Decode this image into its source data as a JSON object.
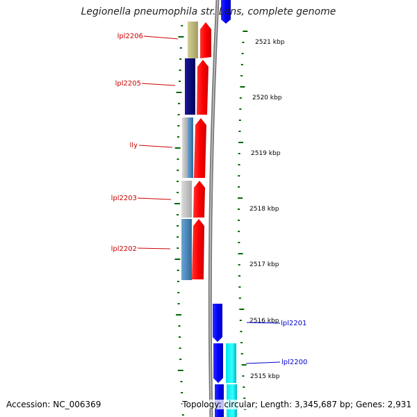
{
  "title": "Legionella pneumophila str. Lens, complete genome",
  "footer": {
    "accession": "Accession: NC_006369",
    "topology": "Topology: circular; Length: 3,345,687 bp; Genes: 2,931"
  },
  "ruler": {
    "labels": [
      "2521 kbp",
      "2520 kbp",
      "2519 kbp",
      "2518 kbp",
      "2517 kbp",
      "2516 kbp",
      "2515 kbp"
    ]
  },
  "genes": [
    {
      "label": "lpl2206",
      "color": "#cc0000",
      "strand": "forward"
    },
    {
      "label": "lpl2205",
      "color": "#cc0000",
      "strand": "forward"
    },
    {
      "label": "lly",
      "color": "#cc0000",
      "strand": "forward"
    },
    {
      "label": "lpl2203",
      "color": "#cc0000",
      "strand": "forward"
    },
    {
      "label": "lpl2202",
      "color": "#cc0000",
      "strand": "forward"
    },
    {
      "label": "lpl2201",
      "color": "#0000cc",
      "strand": "reverse"
    },
    {
      "label": "lpl2200",
      "color": "#0000cc",
      "strand": "reverse"
    }
  ],
  "colors": {
    "forward_gene": "#ff0000",
    "reverse_gene": "#0000ff",
    "backbone": "#888888",
    "tick": "#006600",
    "cog_tan": "#bdb67a",
    "cog_navy": "#00007f",
    "cog_gray": "#c0c0c0",
    "cog_steel": "#4682b4",
    "cog_cyan": "#00e5ee"
  }
}
